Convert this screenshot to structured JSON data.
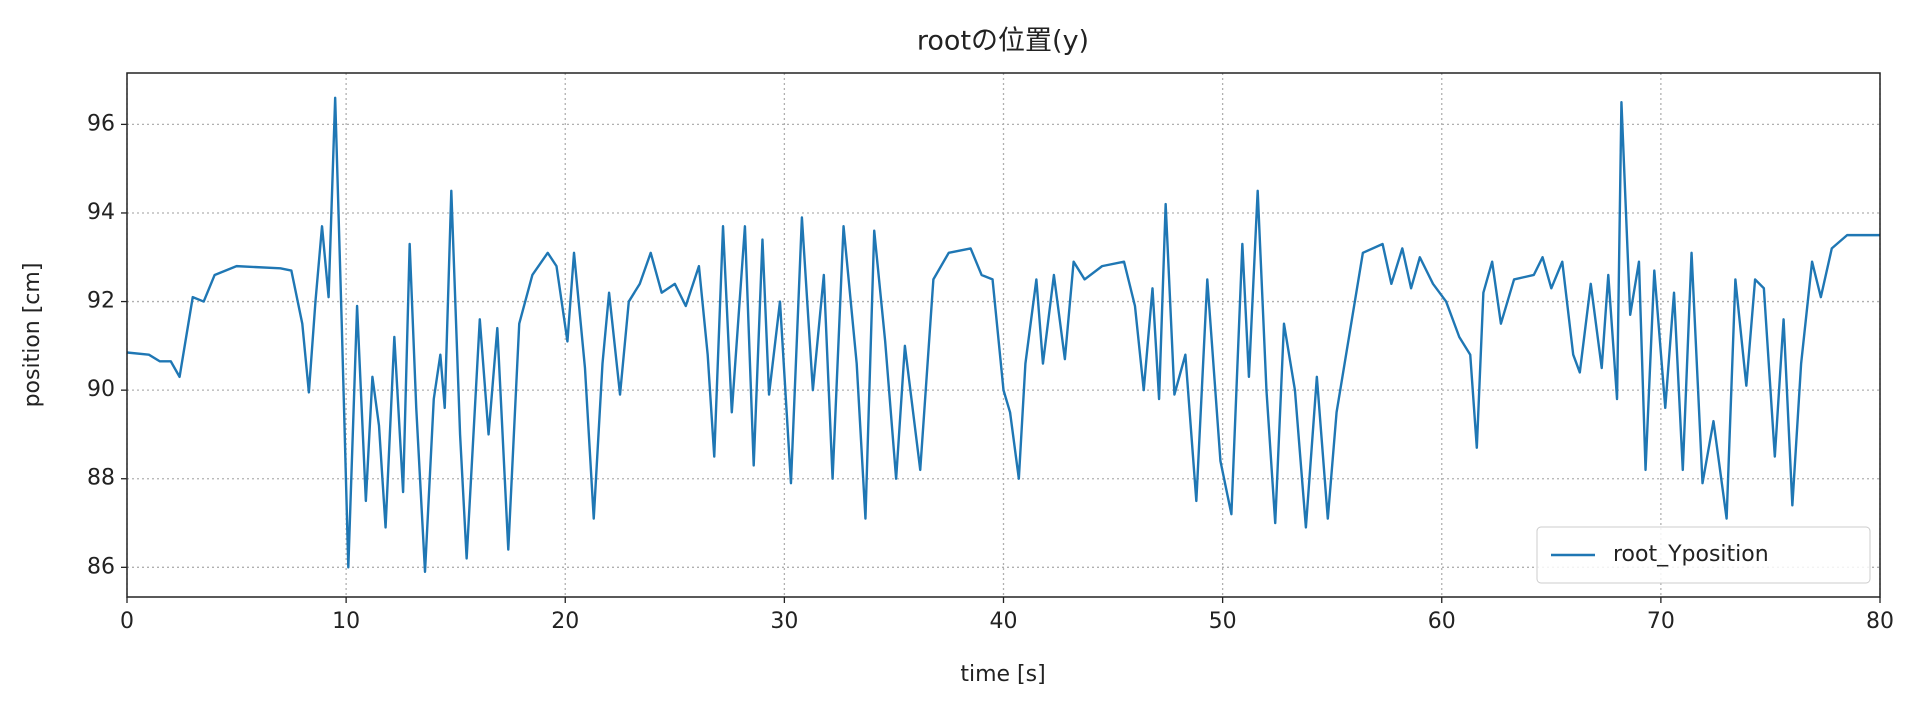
{
  "chart_data": {
    "type": "line",
    "title": "rootの位置(y)",
    "x_label": "time [s]",
    "y_label": "position [cm]",
    "xlim": [
      0,
      80
    ],
    "ylim": [
      85.33,
      97.16
    ],
    "xticks": [
      0,
      10,
      20,
      30,
      40,
      50,
      60,
      70,
      80
    ],
    "yticks": [
      86,
      88,
      90,
      92,
      94,
      96
    ],
    "grid": true,
    "legend": "lower right",
    "series": [
      {
        "name": "root_Yposition",
        "color": "#1f77b4",
        "x": [
          0,
          1,
          1.5,
          2,
          2.4,
          3,
          3.5,
          4,
          5,
          7,
          7.5,
          8,
          8.3,
          8.6,
          8.9,
          9.2,
          9.5,
          9.8,
          10.1,
          10.5,
          10.9,
          11.2,
          11.5,
          11.8,
          12.2,
          12.6,
          12.9,
          13.2,
          13.6,
          14.0,
          14.3,
          14.5,
          14.8,
          15.2,
          15.5,
          16.1,
          16.5,
          16.9,
          17.4,
          17.9,
          18.5,
          19.2,
          19.6,
          20.1,
          20.4,
          20.9,
          21.3,
          21.7,
          22.0,
          22.5,
          22.9,
          23.4,
          23.9,
          24.4,
          25.0,
          25.5,
          26.1,
          26.5,
          26.8,
          27.2,
          27.6,
          28.2,
          28.6,
          29.0,
          29.3,
          29.8,
          30.3,
          30.8,
          31.3,
          31.8,
          32.2,
          32.7,
          33.3,
          33.7,
          34.1,
          34.6,
          35.1,
          35.5,
          36.2,
          36.8,
          37.5,
          38.5,
          39.0,
          39.5,
          40.0,
          40.3,
          40.7,
          41.0,
          41.5,
          41.8,
          42.3,
          42.8,
          43.2,
          43.7,
          44.5,
          45.5,
          46.0,
          46.4,
          46.8,
          47.1,
          47.4,
          47.8,
          48.3,
          48.8,
          49.3,
          49.9,
          50.4,
          50.9,
          51.2,
          51.6,
          52.0,
          52.4,
          52.8,
          53.3,
          53.8,
          54.3,
          54.8,
          55.2,
          55.8,
          56.4,
          57.3,
          57.7,
          58.2,
          58.6,
          59.0,
          59.6,
          60.2,
          60.8,
          61.3,
          61.6,
          61.9,
          62.3,
          62.7,
          63.3,
          64.2,
          64.6,
          65.0,
          65.5,
          66.0,
          66.3,
          66.8,
          67.3,
          67.6,
          68.0,
          68.2,
          68.6,
          69.0,
          69.3,
          69.7,
          70.2,
          70.6,
          71.0,
          71.4,
          71.9,
          72.4,
          73.0,
          73.4,
          73.9,
          74.3,
          74.7,
          75.2,
          75.6,
          76.0,
          76.4,
          76.9,
          77.3,
          77.8,
          78.5,
          79.0,
          80.0
        ],
        "values": [
          90.85,
          90.8,
          90.65,
          90.65,
          90.3,
          92.1,
          92.0,
          92.6,
          92.8,
          92.75,
          92.7,
          91.5,
          89.95,
          92.0,
          93.7,
          92.1,
          96.6,
          91.5,
          86.0,
          91.9,
          87.5,
          90.3,
          89.2,
          86.9,
          91.2,
          87.7,
          93.3,
          89.6,
          85.9,
          89.8,
          90.8,
          89.6,
          94.5,
          89.0,
          86.2,
          91.6,
          89.0,
          91.4,
          86.4,
          91.5,
          92.6,
          93.1,
          92.8,
          91.1,
          93.1,
          90.5,
          87.1,
          90.6,
          92.2,
          89.9,
          92.0,
          92.4,
          93.1,
          92.2,
          92.4,
          91.9,
          92.8,
          90.8,
          88.5,
          93.7,
          89.5,
          93.7,
          88.3,
          93.4,
          89.9,
          92.0,
          87.9,
          93.9,
          90.0,
          92.6,
          88.0,
          93.7,
          90.6,
          87.1,
          93.6,
          91.1,
          88.0,
          91.0,
          88.2,
          92.5,
          93.1,
          93.2,
          92.6,
          92.5,
          90.0,
          89.5,
          88.0,
          90.6,
          92.5,
          90.6,
          92.6,
          90.7,
          92.9,
          92.5,
          92.8,
          92.9,
          91.9,
          90.0,
          92.3,
          89.8,
          94.2,
          89.9,
          90.8,
          87.5,
          92.5,
          88.4,
          87.2,
          93.3,
          90.3,
          94.5,
          90.0,
          87.0,
          91.5,
          90.0,
          86.9,
          90.3,
          87.1,
          89.5,
          91.3,
          93.1,
          93.3,
          92.4,
          93.2,
          92.3,
          93.0,
          92.4,
          92.0,
          91.2,
          90.8,
          88.7,
          92.2,
          92.9,
          91.5,
          92.5,
          92.6,
          93.0,
          92.3,
          92.9,
          90.8,
          90.4,
          92.4,
          90.5,
          92.6,
          89.8,
          96.5,
          91.7,
          92.9,
          88.2,
          92.7,
          89.6,
          92.2,
          88.2,
          93.1,
          87.9,
          89.3,
          87.1,
          92.5,
          90.1,
          92.5,
          92.3,
          88.5,
          91.6,
          87.4,
          90.6,
          92.9,
          92.1,
          93.2,
          93.5,
          93.5,
          93.5
        ]
      }
    ]
  }
}
